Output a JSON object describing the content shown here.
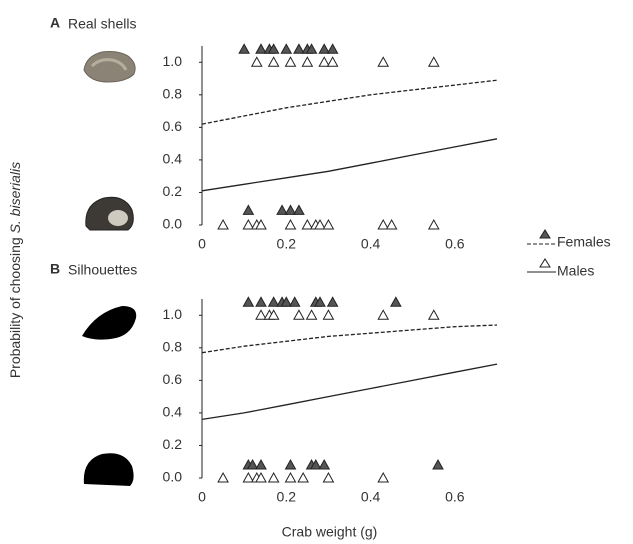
{
  "chart_data": [
    {
      "type": "scatter",
      "label": "A",
      "title": "Real shells",
      "ylabel": "Probability of choosing ",
      "ylabel_italic": "S. biserialis",
      "xlim": [
        0,
        0.7
      ],
      "ylim": [
        0,
        1.1
      ],
      "xticks": [
        0,
        0.2,
        0.4,
        0.6
      ],
      "yticks": [
        {
          "value": 0,
          "label": "0.0"
        },
        0.2,
        0.4,
        0.6,
        0.8,
        {
          "value": 1,
          "label": "1.0"
        }
      ],
      "fit_x": [
        0,
        0.1,
        0.2,
        0.3,
        0.4,
        0.5,
        0.6,
        0.7
      ],
      "series": [
        {
          "name": "Females",
          "color": "#555555",
          "marker": "filled",
          "dash": true,
          "x": [
            0.1,
            0.14,
            0.16,
            0.17,
            0.2,
            0.23,
            0.25,
            0.26,
            0.29,
            0.31,
            0.11,
            0.19,
            0.21,
            0.23
          ],
          "y": [
            1.08,
            1.08,
            1.08,
            1.08,
            1.08,
            1.08,
            1.08,
            1.08,
            1.08,
            1.08,
            0.09,
            0.09,
            0.09,
            0.09
          ],
          "fit_y": [
            0.62,
            0.67,
            0.72,
            0.76,
            0.8,
            0.83,
            0.86,
            0.89
          ]
        },
        {
          "name": "Males",
          "color": "#ffffff",
          "marker": "open",
          "dash": false,
          "x": [
            0.13,
            0.17,
            0.21,
            0.25,
            0.29,
            0.31,
            0.43,
            0.55,
            0.05,
            0.11,
            0.13,
            0.14,
            0.21,
            0.25,
            0.27,
            0.28,
            0.3,
            0.43,
            0.45,
            0.55
          ],
          "y": [
            1,
            1,
            1,
            1,
            1,
            1,
            1,
            1,
            0,
            0,
            0,
            0,
            0,
            0,
            0,
            0,
            0,
            0,
            0,
            0
          ],
          "fit_y": [
            0.21,
            0.25,
            0.29,
            0.33,
            0.38,
            0.43,
            0.48,
            0.53
          ]
        }
      ]
    },
    {
      "type": "scatter",
      "label": "B",
      "title": "Silhouettes",
      "xlabel": "Crab weight (g)",
      "xlim": [
        0,
        0.7
      ],
      "ylim": [
        0,
        1.1
      ],
      "xticks": [
        0,
        0.2,
        0.4,
        0.6
      ],
      "yticks": [
        {
          "value": 0,
          "label": "0.0"
        },
        0.2,
        0.4,
        0.6,
        0.8,
        {
          "value": 1,
          "label": "1.0"
        }
      ],
      "fit_x": [
        0,
        0.1,
        0.2,
        0.3,
        0.4,
        0.5,
        0.6,
        0.7
      ],
      "series": [
        {
          "color": "#555555",
          "marker": "filled",
          "dash": true,
          "x": [
            0.11,
            0.14,
            0.17,
            0.19,
            0.2,
            0.22,
            0.27,
            0.28,
            0.31,
            0.46,
            0.11,
            0.12,
            0.14,
            0.21,
            0.26,
            0.27,
            0.29,
            0.56
          ],
          "y": [
            1.08,
            1.08,
            1.08,
            1.08,
            1.08,
            1.08,
            1.08,
            1.08,
            1.08,
            1.08,
            0.08,
            0.08,
            0.08,
            0.08,
            0.08,
            0.08,
            0.08,
            0.08
          ],
          "fit_y": [
            0.77,
            0.81,
            0.84,
            0.87,
            0.89,
            0.91,
            0.93,
            0.94
          ]
        },
        {
          "color": "#ffffff",
          "marker": "open",
          "dash": false,
          "x": [
            0.14,
            0.16,
            0.17,
            0.23,
            0.26,
            0.3,
            0.43,
            0.55,
            0.05,
            0.11,
            0.13,
            0.14,
            0.17,
            0.21,
            0.24,
            0.3,
            0.43
          ],
          "y": [
            1,
            1,
            1,
            1,
            1,
            1,
            1,
            1,
            0,
            0,
            0,
            0,
            0,
            0,
            0,
            0,
            0
          ],
          "fit_y": [
            0.36,
            0.4,
            0.45,
            0.5,
            0.55,
            0.6,
            0.65,
            0.7
          ]
        }
      ]
    }
  ]
}
